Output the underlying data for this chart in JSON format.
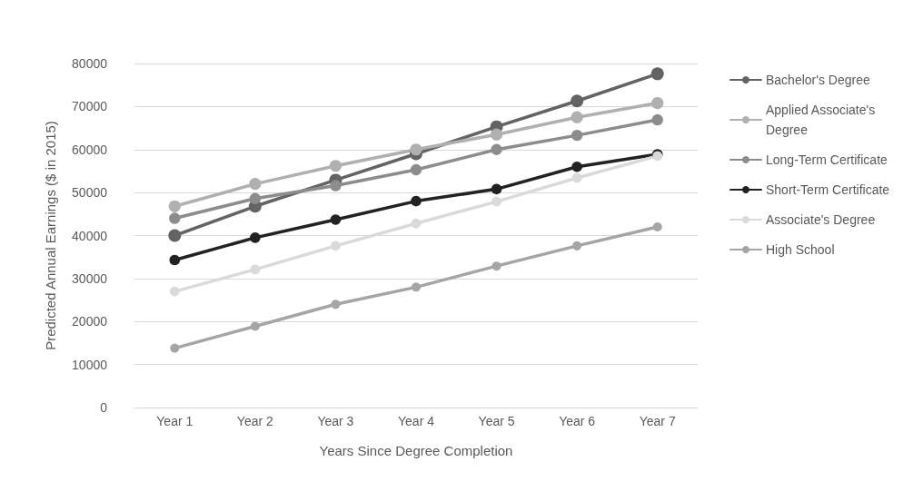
{
  "chart_data": {
    "type": "line",
    "xlabel": "Years Since Degree Completion",
    "ylabel": "Predicted Annual Earnings ($ in 2015)",
    "categories": [
      "Year 1",
      "Year 2",
      "Year 3",
      "Year 4",
      "Year 5",
      "Year 6",
      "Year 7"
    ],
    "series": [
      {
        "name": "Bachelor's Degree",
        "color": "#636363",
        "values": [
          40000,
          46800,
          52900,
          59000,
          65300,
          71300,
          77600
        ]
      },
      {
        "name": "Applied Associate's Degree",
        "color": "#b0b0b0",
        "values": [
          46800,
          52000,
          56200,
          60000,
          63500,
          67500,
          70800
        ]
      },
      {
        "name": "Long-Term Certificate",
        "color": "#8c8c8c",
        "values": [
          44000,
          48600,
          51600,
          55300,
          60000,
          63300,
          66900
        ]
      },
      {
        "name": "Short-Term Certificate",
        "color": "#222222",
        "values": [
          34300,
          39500,
          43700,
          48000,
          50800,
          56000,
          58900
        ]
      },
      {
        "name": "Associate's Degree",
        "color": "#dadada",
        "values": [
          27000,
          32100,
          37600,
          42800,
          47900,
          53400,
          58500
        ]
      },
      {
        "name": "High School",
        "color": "#a5a5a5",
        "values": [
          13800,
          18900,
          24000,
          28000,
          32900,
          37600,
          42000
        ]
      }
    ],
    "ylim": [
      0,
      80000
    ],
    "yticks": [
      0,
      10000,
      20000,
      30000,
      40000,
      50000,
      60000,
      70000,
      80000
    ],
    "grid": "y",
    "legend": "right",
    "marker": "circle",
    "line_style": "solid"
  }
}
